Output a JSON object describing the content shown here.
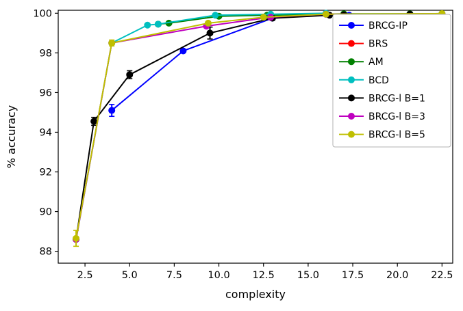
{
  "chart_data": {
    "type": "line",
    "title": "",
    "xlabel": "complexity",
    "ylabel": "% accuracy",
    "xlim": [
      1.0,
      23.1
    ],
    "ylim": [
      87.4,
      100.15
    ],
    "grid": false,
    "legend_position": "upper right",
    "xtick_values": [
      2.5,
      5.0,
      7.5,
      10.0,
      12.5,
      15.0,
      17.5,
      20.0,
      22.5
    ],
    "xtick_labels": [
      "2.5",
      "5.0",
      "7.5",
      "10.0",
      "12.5",
      "15.0",
      "17.5",
      "20.0",
      "22.5"
    ],
    "ytick_values": [
      88,
      90,
      92,
      94,
      96,
      98,
      100
    ],
    "ytick_labels": [
      "88",
      "90",
      "92",
      "94",
      "96",
      "98",
      "100"
    ],
    "series": [
      {
        "name": "BRCG-IP",
        "color": "#0000ff",
        "x": [
          4,
          8,
          13,
          16,
          17.3
        ],
        "y": [
          95.1,
          98.1,
          99.75,
          99.95,
          99.9
        ],
        "yerr": [
          0.3,
          0,
          0,
          0,
          0
        ]
      },
      {
        "name": "BRS",
        "color": "#ff0000",
        "x": [
          16.8,
          17.6,
          18.1,
          18.6,
          22.5
        ],
        "y": [
          99.8,
          99.75,
          99.75,
          99.75,
          99.75
        ],
        "yerr": [
          0,
          0,
          0,
          0,
          0
        ]
      },
      {
        "name": "AM",
        "color": "#008000",
        "x": [
          6.6,
          7.2,
          10,
          12.7,
          17,
          20.7,
          22.5
        ],
        "y": [
          99.45,
          99.5,
          99.85,
          99.9,
          99.97,
          99.97,
          99.98
        ],
        "yerr": [
          0,
          0,
          0,
          0,
          0,
          0,
          0
        ]
      },
      {
        "name": "BCD",
        "color": "#00bfbf",
        "x": [
          2,
          4,
          6,
          6.6,
          9.8,
          12.9,
          16
        ],
        "y": [
          88.6,
          98.5,
          99.4,
          99.45,
          99.9,
          99.95,
          100
        ],
        "yerr": [
          0,
          0,
          0,
          0,
          0,
          0,
          0
        ]
      },
      {
        "name": "BRCG-l B=1",
        "color": "#000000",
        "x": [
          2,
          3,
          5,
          9.5,
          13,
          16.2,
          17,
          20.7
        ],
        "y": [
          88.6,
          94.55,
          96.9,
          99.0,
          99.75,
          99.9,
          99.92,
          99.95
        ],
        "yerr": [
          0,
          0.2,
          0.2,
          0.3,
          0.1,
          0,
          0,
          0
        ]
      },
      {
        "name": "BRCG-l B=3",
        "color": "#bf00bf",
        "x": [
          2,
          4,
          9.3,
          12.9,
          16,
          22.5
        ],
        "y": [
          88.6,
          98.5,
          99.35,
          99.8,
          99.95,
          99.97
        ],
        "yerr": [
          0,
          0,
          0,
          0,
          0,
          0
        ]
      },
      {
        "name": "BRCG-l B=5",
        "color": "#bfbf00",
        "x": [
          2,
          4,
          9.4,
          12.5,
          16,
          22.5
        ],
        "y": [
          88.65,
          98.5,
          99.5,
          99.8,
          99.95,
          99.98
        ],
        "yerr": [
          0.4,
          0.15,
          0,
          0,
          0,
          0
        ]
      }
    ]
  }
}
